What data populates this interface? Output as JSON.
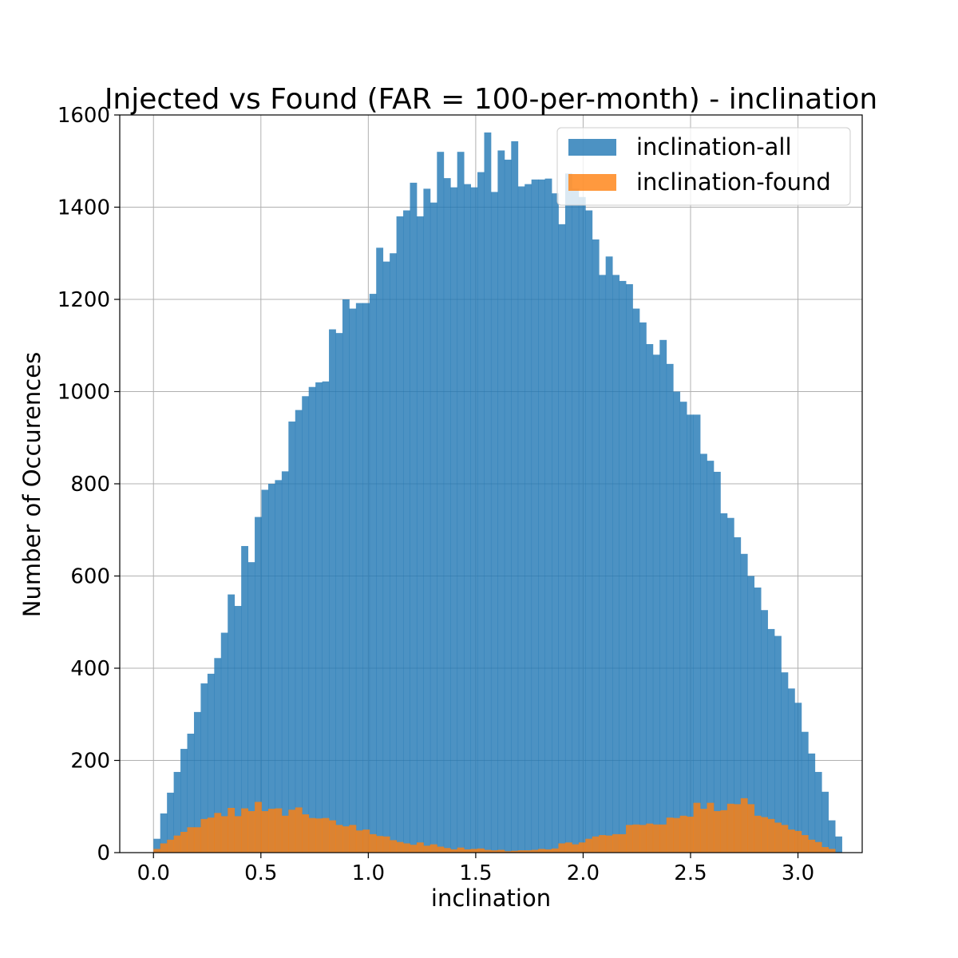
{
  "chart_data": {
    "type": "bar",
    "title": "Injected vs Found (FAR = 100-per-month) - inclination",
    "xlabel": "inclination",
    "ylabel": "Number of Occurences",
    "xlim": [
      -0.157,
      3.299
    ],
    "ylim": [
      0,
      1600
    ],
    "x_ticks": [
      "0.0",
      "0.5",
      "1.0",
      "1.5",
      "2.0",
      "2.5",
      "3.0"
    ],
    "y_ticks": [
      "0",
      "200",
      "400",
      "600",
      "800",
      "1000",
      "1200",
      "1400",
      "1600"
    ],
    "grid": true,
    "legend_position": "top-right",
    "bin_start": 0.0,
    "bin_width": 0.031416,
    "series": [
      {
        "name": "inclination-all",
        "color": "#1f77b4",
        "opacity": 0.8,
        "values": [
          30,
          85,
          130,
          175,
          225,
          258,
          305,
          367,
          388,
          422,
          477,
          560,
          535,
          665,
          630,
          728,
          787,
          800,
          808,
          827,
          935,
          960,
          990,
          1010,
          1020,
          1022,
          1135,
          1127,
          1200,
          1180,
          1192,
          1192,
          1212,
          1312,
          1282,
          1300,
          1380,
          1393,
          1453,
          1380,
          1440,
          1410,
          1520,
          1463,
          1443,
          1520,
          1450,
          1443,
          1476,
          1562,
          1433,
          1523,
          1503,
          1543,
          1445,
          1450,
          1460,
          1460,
          1462,
          1430,
          1363,
          1473,
          1440,
          1422,
          1393,
          1330,
          1253,
          1293,
          1253,
          1240,
          1233,
          1180,
          1150,
          1103,
          1080,
          1112,
          1060,
          1000,
          978,
          950,
          950,
          865,
          850,
          826,
          736,
          726,
          684,
          648,
          600,
          575,
          526,
          485,
          470,
          391,
          356,
          325,
          262,
          215,
          175,
          132,
          70,
          35
        ]
      },
      {
        "name": "inclination-found",
        "color": "#ff7f0e",
        "opacity": 0.8,
        "values": [
          8,
          20,
          28,
          37,
          45,
          55,
          55,
          73,
          76,
          86,
          79,
          97,
          79,
          96,
          90,
          110,
          90,
          95,
          96,
          80,
          93,
          98,
          83,
          75,
          74,
          75,
          70,
          60,
          57,
          60,
          48,
          50,
          40,
          36,
          35,
          27,
          23,
          20,
          17,
          22,
          15,
          18,
          13,
          10,
          7,
          11,
          7,
          8,
          9,
          6,
          5,
          6,
          3,
          4,
          5,
          5,
          6,
          8,
          7,
          9,
          20,
          22,
          18,
          22,
          30,
          35,
          38,
          37,
          40,
          40,
          60,
          61,
          60,
          63,
          61,
          61,
          76,
          75,
          80,
          78,
          108,
          95,
          108,
          90,
          92,
          106,
          105,
          118,
          105,
          80,
          77,
          73,
          65,
          60,
          50,
          47,
          38,
          28,
          23,
          12,
          8,
          0
        ]
      }
    ]
  }
}
